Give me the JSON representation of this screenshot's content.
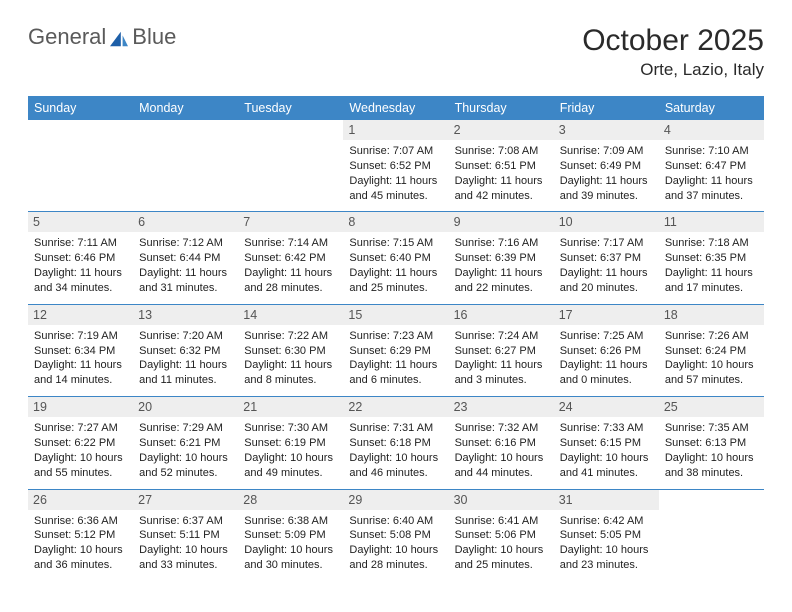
{
  "brand": {
    "name_left": "General",
    "name_right": "Blue"
  },
  "title": "October 2025",
  "location": "Orte, Lazio, Italy",
  "dowHeaders": [
    "Sunday",
    "Monday",
    "Tuesday",
    "Wednesday",
    "Thursday",
    "Friday",
    "Saturday"
  ],
  "colors": {
    "header_bg": "#3d86c6",
    "header_text": "#ffffff",
    "daynum_bg": "#eeeeee",
    "border": "#3d86c6"
  },
  "weeks": [
    [
      null,
      null,
      null,
      {
        "d": "1",
        "sr": "7:07 AM",
        "ss": "6:52 PM",
        "dl": "11 hours and 45 minutes."
      },
      {
        "d": "2",
        "sr": "7:08 AM",
        "ss": "6:51 PM",
        "dl": "11 hours and 42 minutes."
      },
      {
        "d": "3",
        "sr": "7:09 AM",
        "ss": "6:49 PM",
        "dl": "11 hours and 39 minutes."
      },
      {
        "d": "4",
        "sr": "7:10 AM",
        "ss": "6:47 PM",
        "dl": "11 hours and 37 minutes."
      }
    ],
    [
      {
        "d": "5",
        "sr": "7:11 AM",
        "ss": "6:46 PM",
        "dl": "11 hours and 34 minutes."
      },
      {
        "d": "6",
        "sr": "7:12 AM",
        "ss": "6:44 PM",
        "dl": "11 hours and 31 minutes."
      },
      {
        "d": "7",
        "sr": "7:14 AM",
        "ss": "6:42 PM",
        "dl": "11 hours and 28 minutes."
      },
      {
        "d": "8",
        "sr": "7:15 AM",
        "ss": "6:40 PM",
        "dl": "11 hours and 25 minutes."
      },
      {
        "d": "9",
        "sr": "7:16 AM",
        "ss": "6:39 PM",
        "dl": "11 hours and 22 minutes."
      },
      {
        "d": "10",
        "sr": "7:17 AM",
        "ss": "6:37 PM",
        "dl": "11 hours and 20 minutes."
      },
      {
        "d": "11",
        "sr": "7:18 AM",
        "ss": "6:35 PM",
        "dl": "11 hours and 17 minutes."
      }
    ],
    [
      {
        "d": "12",
        "sr": "7:19 AM",
        "ss": "6:34 PM",
        "dl": "11 hours and 14 minutes."
      },
      {
        "d": "13",
        "sr": "7:20 AM",
        "ss": "6:32 PM",
        "dl": "11 hours and 11 minutes."
      },
      {
        "d": "14",
        "sr": "7:22 AM",
        "ss": "6:30 PM",
        "dl": "11 hours and 8 minutes."
      },
      {
        "d": "15",
        "sr": "7:23 AM",
        "ss": "6:29 PM",
        "dl": "11 hours and 6 minutes."
      },
      {
        "d": "16",
        "sr": "7:24 AM",
        "ss": "6:27 PM",
        "dl": "11 hours and 3 minutes."
      },
      {
        "d": "17",
        "sr": "7:25 AM",
        "ss": "6:26 PM",
        "dl": "11 hours and 0 minutes."
      },
      {
        "d": "18",
        "sr": "7:26 AM",
        "ss": "6:24 PM",
        "dl": "10 hours and 57 minutes."
      }
    ],
    [
      {
        "d": "19",
        "sr": "7:27 AM",
        "ss": "6:22 PM",
        "dl": "10 hours and 55 minutes."
      },
      {
        "d": "20",
        "sr": "7:29 AM",
        "ss": "6:21 PM",
        "dl": "10 hours and 52 minutes."
      },
      {
        "d": "21",
        "sr": "7:30 AM",
        "ss": "6:19 PM",
        "dl": "10 hours and 49 minutes."
      },
      {
        "d": "22",
        "sr": "7:31 AM",
        "ss": "6:18 PM",
        "dl": "10 hours and 46 minutes."
      },
      {
        "d": "23",
        "sr": "7:32 AM",
        "ss": "6:16 PM",
        "dl": "10 hours and 44 minutes."
      },
      {
        "d": "24",
        "sr": "7:33 AM",
        "ss": "6:15 PM",
        "dl": "10 hours and 41 minutes."
      },
      {
        "d": "25",
        "sr": "7:35 AM",
        "ss": "6:13 PM",
        "dl": "10 hours and 38 minutes."
      }
    ],
    [
      {
        "d": "26",
        "sr": "6:36 AM",
        "ss": "5:12 PM",
        "dl": "10 hours and 36 minutes."
      },
      {
        "d": "27",
        "sr": "6:37 AM",
        "ss": "5:11 PM",
        "dl": "10 hours and 33 minutes."
      },
      {
        "d": "28",
        "sr": "6:38 AM",
        "ss": "5:09 PM",
        "dl": "10 hours and 30 minutes."
      },
      {
        "d": "29",
        "sr": "6:40 AM",
        "ss": "5:08 PM",
        "dl": "10 hours and 28 minutes."
      },
      {
        "d": "30",
        "sr": "6:41 AM",
        "ss": "5:06 PM",
        "dl": "10 hours and 25 minutes."
      },
      {
        "d": "31",
        "sr": "6:42 AM",
        "ss": "5:05 PM",
        "dl": "10 hours and 23 minutes."
      },
      null
    ]
  ]
}
